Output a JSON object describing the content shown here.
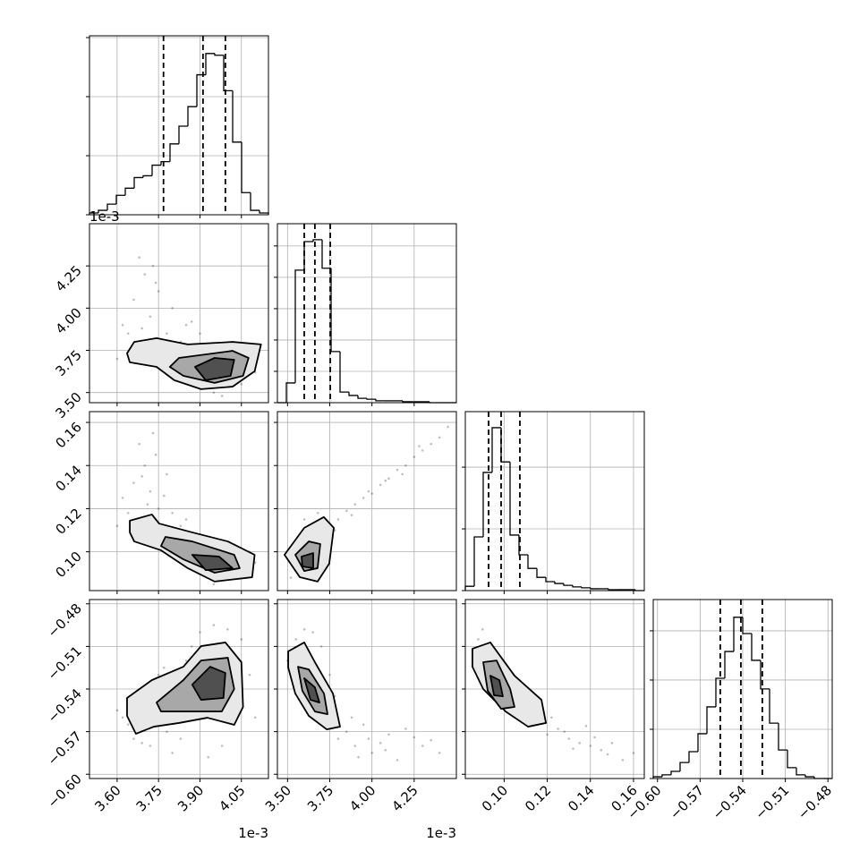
{
  "chart_data": {
    "type": "corner",
    "grid": true,
    "point_color": "#000000",
    "line_color": "#000000",
    "contour_fills": [
      "#e8e8e8",
      "#a8a8a8",
      "#505050"
    ],
    "params": [
      {
        "lim": [
          3.5,
          4.148
        ],
        "ticks": [
          {
            "value": 3.6,
            "label": "3.60"
          },
          3.75,
          {
            "value": 3.9,
            "label": "3.90"
          },
          4.05
        ],
        "offset": "1e-3"
      },
      {
        "lim": [
          3.44,
          4.5
        ],
        "ticks": [
          {
            "value": 3.5,
            "label": "3.50"
          },
          3.75,
          {
            "value": 4,
            "label": "4.00"
          },
          4.25
        ],
        "offset": "1e-3"
      },
      {
        "lim": [
          0.082,
          0.165
        ],
        "ticks": [
          {
            "value": 0.1,
            "label": "0.10"
          },
          0.12,
          0.14,
          0.16
        ]
      },
      {
        "lim": [
          -0.603,
          -0.477
        ],
        "ticks": [
          {
            "value": -0.6,
            "label": "−0.60"
          },
          {
            "value": -0.57,
            "label": "−0.57"
          },
          {
            "value": -0.54,
            "label": "−0.54"
          },
          {
            "value": -0.51,
            "label": "−0.51"
          },
          {
            "value": -0.48,
            "label": "−0.48"
          }
        ]
      }
    ],
    "histograms": [
      {
        "bins": [
          3.5,
          3.5324,
          3.5648,
          3.5972,
          3.6296,
          3.662,
          3.6944,
          3.7268,
          3.7592,
          3.7916,
          3.824,
          3.8564,
          3.8888,
          3.9212,
          3.9536,
          3.986,
          4.0184,
          4.0508,
          4.0832,
          4.1156,
          4.148
        ],
        "values": [
          6,
          15,
          36,
          66,
          90,
          126,
          132,
          168,
          180,
          240,
          300,
          366,
          474,
          546,
          540,
          420,
          246,
          75,
          15,
          6
        ],
        "ylim": [
          0,
          606
        ],
        "yticks": [
          0,
          200,
          400,
          600
        ],
        "quantiles": [
          3.768,
          3.911,
          3.992
        ]
      },
      {
        "bins": [
          3.44,
          3.493,
          3.546,
          3.599,
          3.652,
          3.705,
          3.758,
          3.811,
          3.864,
          3.917,
          3.97,
          4.023,
          4.076,
          4.129,
          4.182,
          4.235,
          4.288,
          4.341,
          4.394,
          4.447,
          4.5
        ],
        "values": [
          0,
          63,
          423,
          514,
          520,
          429,
          163,
          34,
          23,
          14,
          11,
          6,
          6,
          6,
          3,
          3,
          3,
          0,
          0,
          0
        ],
        "ylim": [
          0,
          571
        ],
        "yticks": [
          0,
          100,
          200,
          300,
          400,
          500
        ],
        "quantiles": [
          3.599,
          3.662,
          3.753
        ]
      },
      {
        "bins": [
          0.082,
          0.08615,
          0.0903,
          0.09445,
          0.0986,
          0.10275,
          0.1069,
          0.11105,
          0.1152,
          0.11935,
          0.1235,
          0.12765,
          0.1318,
          0.13595,
          0.1401,
          0.14425,
          0.1484,
          0.15255,
          0.1567,
          0.16085,
          0.165
        ],
        "values": [
          14,
          174,
          383,
          528,
          417,
          180,
          116,
          72,
          43,
          29,
          23,
          17,
          12,
          9,
          6,
          6,
          3,
          3,
          3,
          0
        ],
        "ylim": [
          0,
          580
        ],
        "yticks": [
          0,
          200,
          400
        ],
        "quantiles": [
          0.0928,
          0.0986,
          0.1073
        ]
      },
      {
        "bins": [
          -0.603,
          -0.5967,
          -0.5904,
          -0.5841,
          -0.5778,
          -0.5715,
          -0.5652,
          -0.5589,
          -0.5526,
          -0.5463,
          -0.54,
          -0.5337,
          -0.5274,
          -0.5211,
          -0.5148,
          -0.5085,
          -0.5022,
          -0.4959,
          -0.4896,
          -0.4833,
          -0.477
        ],
        "values": [
          7,
          15,
          29,
          65,
          109,
          182,
          291,
          407,
          516,
          655,
          589,
          480,
          364,
          225,
          116,
          44,
          15,
          7,
          0,
          0
        ],
        "ylim": [
          0,
          727
        ],
        "yticks": [
          0,
          200,
          400,
          600
        ],
        "quantiles": [
          -0.5558,
          -0.5413,
          -0.5262
        ]
      }
    ],
    "pairs": [
      {
        "x": [
          3.62,
          3.66,
          3.7,
          3.72,
          3.75,
          3.78,
          3.8,
          3.85,
          3.68,
          3.74,
          3.71,
          3.9,
          3.95,
          4.05,
          4.1,
          3.6,
          3.64,
          3.77,
          3.83,
          3.98,
          4.08,
          3.69,
          3.73,
          3.87
        ],
        "y": [
          3.9,
          4.05,
          4.2,
          3.95,
          4.1,
          3.85,
          4.0,
          3.9,
          4.3,
          4.15,
          3.8,
          3.85,
          3.5,
          3.55,
          3.62,
          3.7,
          3.85,
          3.75,
          3.8,
          3.48,
          3.78,
          3.88,
          4.25,
          3.92
        ],
        "contours": [
          {
            "x": [
              3.636,
              3.662,
              3.743,
              3.856,
              4.018,
              4.121,
              4.098,
              4.018,
              3.904,
              3.807,
              3.743,
              3.646
            ],
            "y": [
              3.732,
              3.8,
              3.822,
              3.785,
              3.8,
              3.785,
              3.626,
              3.535,
              3.52,
              3.573,
              3.652,
              3.679
            ]
          },
          {
            "x": [
              3.791,
              3.824,
              4.018,
              4.076,
              4.056,
              3.953,
              3.84
            ],
            "y": [
              3.652,
              3.705,
              3.747,
              3.705,
              3.599,
              3.557,
              3.599
            ]
          },
          {
            "x": [
              3.882,
              3.953,
              4.024,
              4.011,
              3.921
            ],
            "y": [
              3.652,
              3.705,
              3.694,
              3.599,
              3.573
            ]
          }
        ]
      },
      {
        "x": [
          3.62,
          3.66,
          3.7,
          3.72,
          3.75,
          3.78,
          3.8,
          3.68,
          3.74,
          3.71,
          3.85,
          3.9,
          3.95,
          4.05,
          4.1,
          3.64,
          3.77,
          3.83,
          3.98,
          4.08,
          3.69,
          3.73,
          3.87,
          3.6
        ],
        "y": [
          0.125,
          0.132,
          0.14,
          0.128,
          0.12,
          0.136,
          0.118,
          0.15,
          0.145,
          0.122,
          0.115,
          0.108,
          0.085,
          0.09,
          0.095,
          0.118,
          0.126,
          0.112,
          0.088,
          0.1,
          0.135,
          0.155,
          0.106,
          0.112
        ],
        "contours": [
          {
            "x": [
              3.646,
              3.726,
              3.752,
              3.872,
              4.001,
              4.098,
              4.089,
              3.953,
              3.856,
              3.759,
              3.662,
              3.646
            ],
            "y": [
              0.1144,
              0.1173,
              0.1131,
              0.109,
              0.1048,
              0.0986,
              0.0882,
              0.0862,
              0.0924,
              0.1007,
              0.1048,
              0.109
            ]
          },
          {
            "x": [
              3.775,
              3.872,
              4.024,
              4.044,
              3.953,
              3.84,
              3.759
            ],
            "y": [
              0.1069,
              0.1048,
              0.0986,
              0.0924,
              0.0903,
              0.0965,
              0.1027
            ]
          },
          {
            "x": [
              3.872,
              3.969,
              4.018,
              3.921
            ],
            "y": [
              0.0986,
              0.0978,
              0.0924,
              0.0915
            ]
          }
        ]
      },
      {
        "x": [
          3.8,
          3.85,
          3.9,
          3.95,
          4.0,
          4.05,
          4.1,
          4.15,
          4.2,
          4.25,
          4.3,
          4.35,
          4.4,
          3.78,
          3.88,
          3.98,
          4.08,
          4.18,
          3.52,
          3.72,
          3.6,
          3.68,
          4.28,
          4.45
        ],
        "y": [
          0.115,
          0.119,
          0.122,
          0.125,
          0.127,
          0.131,
          0.134,
          0.138,
          0.14,
          0.144,
          0.147,
          0.15,
          0.153,
          0.11,
          0.117,
          0.128,
          0.133,
          0.136,
          0.088,
          0.093,
          0.115,
          0.118,
          0.149,
          0.158
        ],
        "contours": [
          {
            "x": [
              3.482,
              3.599,
              3.715,
              3.774,
              3.747,
              3.678,
              3.573
            ],
            "y": [
              0.0986,
              0.1111,
              0.1161,
              0.1111,
              0.0945,
              0.0862,
              0.0882
            ]
          },
          {
            "x": [
              3.546,
              3.626,
              3.694,
              3.678,
              3.599
            ],
            "y": [
              0.0986,
              0.1048,
              0.1036,
              0.0924,
              0.0911
            ]
          },
          {
            "x": [
              3.583,
              3.652,
              3.652,
              3.588
            ],
            "y": [
              0.0978,
              0.0994,
              0.0924,
              0.0932
            ]
          }
        ]
      },
      {
        "x": [
          3.62,
          3.66,
          3.7,
          3.72,
          3.75,
          3.78,
          3.8,
          3.85,
          3.68,
          3.74,
          3.9,
          3.95,
          4.05,
          4.1,
          3.6,
          3.64,
          3.77,
          3.83,
          3.98,
          4.08,
          3.69,
          3.87,
          3.93,
          4.0
        ],
        "y": [
          -0.56,
          -0.575,
          -0.545,
          -0.58,
          -0.53,
          -0.57,
          -0.585,
          -0.52,
          -0.55,
          -0.54,
          -0.5,
          -0.495,
          -0.505,
          -0.56,
          -0.555,
          -0.565,
          -0.525,
          -0.575,
          -0.58,
          -0.53,
          -0.578,
          -0.51,
          -0.588,
          -0.498
        ],
        "contours": [
          {
            "x": [
              3.636,
              3.726,
              3.84,
              3.904,
              3.992,
              4.05,
              4.056,
              4.024,
              3.927,
              3.824,
              3.733,
              3.668,
              3.636
            ],
            "y": [
              -0.5463,
              -0.5337,
              -0.5243,
              -0.5098,
              -0.5072,
              -0.5211,
              -0.5526,
              -0.5652,
              -0.5602,
              -0.5639,
              -0.5665,
              -0.5715,
              -0.5589
            ]
          },
          {
            "x": [
              3.743,
              3.84,
              3.904,
              4.001,
              4.024,
              3.979,
              3.872,
              3.759
            ],
            "y": [
              -0.5495,
              -0.5337,
              -0.5199,
              -0.518,
              -0.54,
              -0.5558,
              -0.5558,
              -0.5558
            ]
          },
          {
            "x": [
              3.872,
              3.937,
              3.992,
              3.985,
              3.904
            ],
            "y": [
              -0.5369,
              -0.5243,
              -0.5287,
              -0.5463,
              -0.5476
            ]
          }
        ]
      },
      {
        "x": [
          3.8,
          3.85,
          3.9,
          3.95,
          4.0,
          4.05,
          4.1,
          4.15,
          4.2,
          4.3,
          4.4,
          3.55,
          3.5,
          3.65,
          3.7,
          3.88,
          3.98,
          4.08,
          4.25,
          3.6,
          3.78,
          4.35,
          3.92,
          3.75
        ],
        "y": [
          -0.575,
          -0.57,
          -0.58,
          -0.565,
          -0.585,
          -0.578,
          -0.572,
          -0.59,
          -0.568,
          -0.58,
          -0.585,
          -0.505,
          -0.52,
          -0.5,
          -0.51,
          -0.56,
          -0.575,
          -0.583,
          -0.574,
          -0.498,
          -0.545,
          -0.576,
          -0.588,
          -0.53
        ],
        "contours": [
          {
            "x": [
              3.504,
              3.599,
              3.662,
              3.769,
              3.811,
              3.732,
              3.626,
              3.546,
              3.504
            ],
            "y": [
              -0.5135,
              -0.5072,
              -0.5211,
              -0.5432,
              -0.5665,
              -0.5684,
              -0.5589,
              -0.5432,
              -0.5249
            ]
          },
          {
            "x": [
              3.562,
              3.626,
              3.716,
              3.737,
              3.662,
              3.588
            ],
            "y": [
              -0.5243,
              -0.5262,
              -0.5432,
              -0.5577,
              -0.5558,
              -0.5413
            ]
          },
          {
            "x": [
              3.599,
              3.662,
              3.689,
              3.636
            ],
            "y": [
              -0.5324,
              -0.5388,
              -0.5495,
              -0.5476
            ]
          }
        ]
      },
      {
        "x": [
          0.11,
          0.115,
          0.12,
          0.125,
          0.13,
          0.135,
          0.14,
          0.145,
          0.15,
          0.155,
          0.16,
          0.088,
          0.09,
          0.095,
          0.1,
          0.118,
          0.128,
          0.138,
          0.148,
          0.105,
          0.112,
          0.122,
          0.132,
          0.142
        ],
        "y": [
          -0.56,
          -0.565,
          -0.572,
          -0.568,
          -0.575,
          -0.578,
          -0.58,
          -0.583,
          -0.578,
          -0.59,
          -0.585,
          -0.505,
          -0.498,
          -0.515,
          -0.525,
          -0.555,
          -0.57,
          -0.566,
          -0.586,
          -0.54,
          -0.548,
          -0.56,
          -0.582,
          -0.574
        ],
        "contours": [
          {
            "x": [
              0.0853,
              0.0936,
              0.1048,
              0.1173,
              0.1194,
              0.1111,
              0.1007,
              0.0903,
              0.0853
            ],
            "y": [
              -0.5116,
              -0.5072,
              -0.5306,
              -0.5476,
              -0.5639,
              -0.5665,
              -0.5558,
              -0.54,
              -0.5243
            ]
          },
          {
            "x": [
              0.0903,
              0.0965,
              0.1028,
              0.1048,
              0.0986,
              0.0924
            ],
            "y": [
              -0.5211,
              -0.5199,
              -0.54,
              -0.5526,
              -0.5539,
              -0.5413
            ]
          },
          {
            "x": [
              0.0936,
              0.0978,
              0.0994,
              0.0953
            ],
            "y": [
              -0.5306,
              -0.5337,
              -0.5451,
              -0.5444
            ]
          }
        ]
      }
    ]
  }
}
